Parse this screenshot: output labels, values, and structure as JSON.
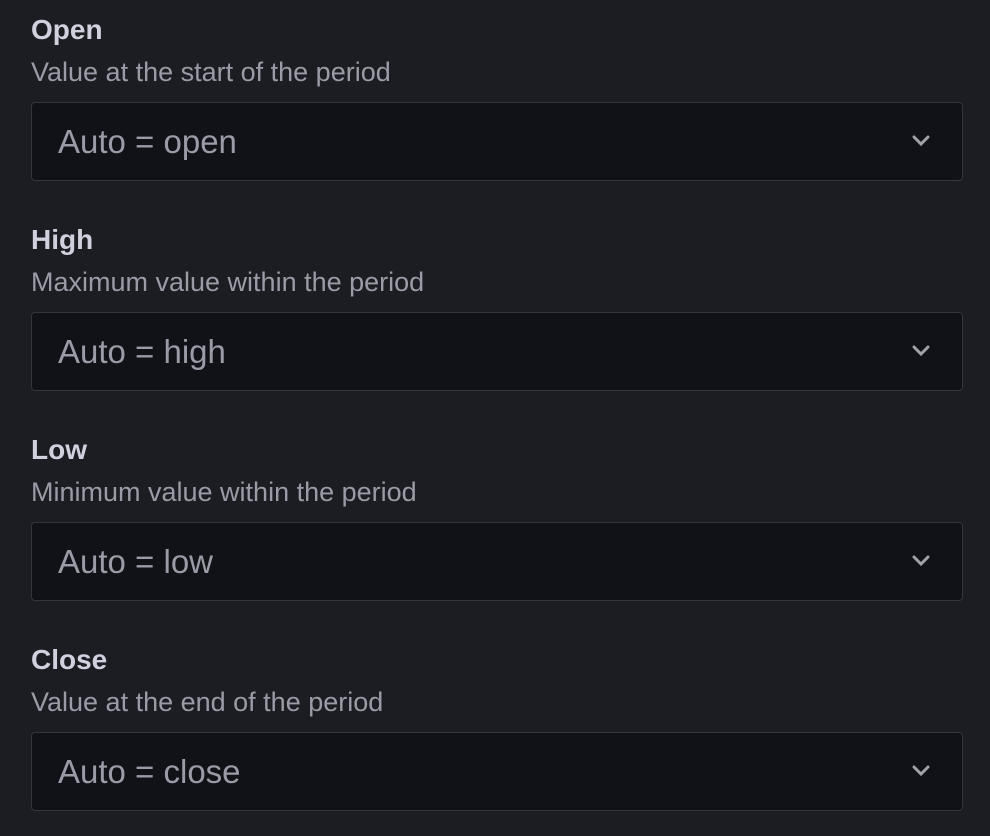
{
  "fields": [
    {
      "label": "Open",
      "description": "Value at the start of the period",
      "value": "Auto = open"
    },
    {
      "label": "High",
      "description": "Maximum value within the period",
      "value": "Auto = high"
    },
    {
      "label": "Low",
      "description": "Minimum value within the period",
      "value": "Auto = low"
    },
    {
      "label": "Close",
      "description": "Value at the end of the period",
      "value": "Auto = close"
    }
  ],
  "icons": {
    "dropdown": "chevron-down-icon"
  }
}
